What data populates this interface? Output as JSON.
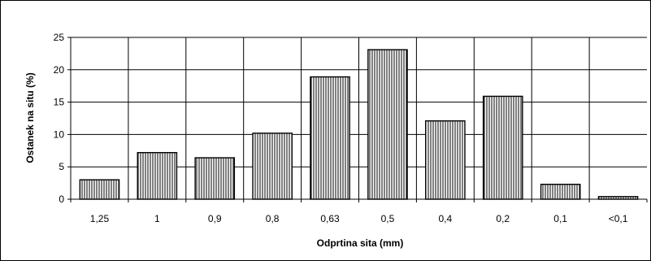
{
  "chart_data": {
    "type": "bar",
    "title": "",
    "xlabel": "Odprtina sita  (mm)",
    "ylabel": "Ostanek na situ  (%)",
    "categories": [
      "1,25",
      "1",
      "0,9",
      "0,8",
      "0,63",
      "0,5",
      "0,4",
      "0,2",
      "0,1",
      "<0,1"
    ],
    "values": [
      3.0,
      7.2,
      6.4,
      10.2,
      18.9,
      23.1,
      12.1,
      15.9,
      2.3,
      0.4
    ],
    "ylim": [
      0,
      25
    ],
    "yticks": [
      0,
      5,
      10,
      15,
      20,
      25
    ],
    "grid": true,
    "legend": "none",
    "bar_fill": "vertical-hatch",
    "colors": {
      "bar_stroke": "#000000",
      "bar_hatch": "#000000",
      "background": "#ffffff",
      "grid": "#000000"
    }
  }
}
